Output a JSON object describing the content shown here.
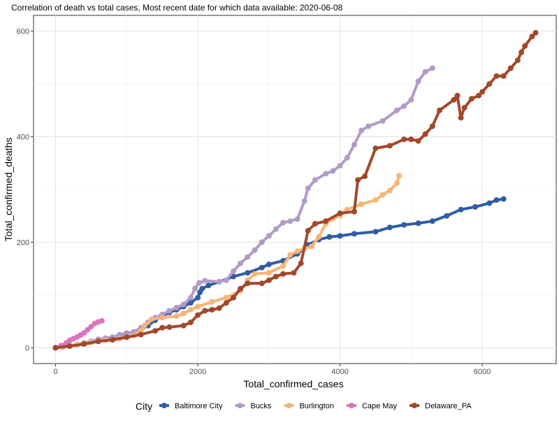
{
  "chart_data": {
    "type": "line",
    "title": "Correlation of death vs total cases, Most recent date for which data available: 2020-06-08",
    "xlabel": "Total_confirmed_cases",
    "ylabel": "Total_confirmed_deaths",
    "xlim": [
      -310,
      7040
    ],
    "ylim": [
      -30,
      630
    ],
    "xticks": [
      0,
      2000,
      4000,
      6000
    ],
    "yticks": [
      0,
      200,
      400,
      600
    ],
    "xtick_labels": [
      "0",
      "2000",
      "4000",
      "6000"
    ],
    "ytick_labels": [
      "0",
      "200",
      "400",
      "600"
    ],
    "grid": true,
    "legend": {
      "title": "City",
      "position": "bottom"
    },
    "series": [
      {
        "name": "Baltimore City",
        "color": "#2f5ca5",
        "points": [
          [
            0,
            0
          ],
          [
            100,
            2
          ],
          [
            200,
            4
          ],
          [
            300,
            6
          ],
          [
            400,
            9
          ],
          [
            500,
            12
          ],
          [
            600,
            15
          ],
          [
            700,
            18
          ],
          [
            800,
            20
          ],
          [
            900,
            24
          ],
          [
            1000,
            27
          ],
          [
            1100,
            30
          ],
          [
            1200,
            35
          ],
          [
            1300,
            42
          ],
          [
            1400,
            52
          ],
          [
            1500,
            60
          ],
          [
            1600,
            67
          ],
          [
            1700,
            72
          ],
          [
            1800,
            78
          ],
          [
            1900,
            85
          ],
          [
            2000,
            95
          ],
          [
            2030,
            105
          ],
          [
            2060,
            112
          ],
          [
            2150,
            118
          ],
          [
            2300,
            125
          ],
          [
            2500,
            135
          ],
          [
            2700,
            142
          ],
          [
            2900,
            152
          ],
          [
            3000,
            158
          ],
          [
            3200,
            165
          ],
          [
            3400,
            178
          ],
          [
            3550,
            195
          ],
          [
            3700,
            205
          ],
          [
            3850,
            210
          ],
          [
            4000,
            212
          ],
          [
            4200,
            216
          ],
          [
            4500,
            220
          ],
          [
            4700,
            228
          ],
          [
            4900,
            233
          ],
          [
            5100,
            236
          ],
          [
            5300,
            240
          ],
          [
            5500,
            250
          ],
          [
            5700,
            262
          ],
          [
            5900,
            267
          ],
          [
            6100,
            274
          ],
          [
            6200,
            280
          ],
          [
            6300,
            282
          ]
        ]
      },
      {
        "name": "Bucks",
        "color": "#b29bc8",
        "points": [
          [
            0,
            0
          ],
          [
            100,
            1
          ],
          [
            200,
            3
          ],
          [
            300,
            6
          ],
          [
            400,
            9
          ],
          [
            500,
            12
          ],
          [
            600,
            16
          ],
          [
            700,
            18
          ],
          [
            800,
            20
          ],
          [
            900,
            23
          ],
          [
            1000,
            26
          ],
          [
            1100,
            30
          ],
          [
            1200,
            38
          ],
          [
            1300,
            48
          ],
          [
            1400,
            57
          ],
          [
            1500,
            63
          ],
          [
            1600,
            70
          ],
          [
            1700,
            76
          ],
          [
            1800,
            82
          ],
          [
            1900,
            95
          ],
          [
            1960,
            112
          ],
          [
            2020,
            123
          ],
          [
            2100,
            127
          ],
          [
            2300,
            125
          ],
          [
            2400,
            128
          ],
          [
            2500,
            145
          ],
          [
            2600,
            160
          ],
          [
            2700,
            172
          ],
          [
            2800,
            185
          ],
          [
            2900,
            200
          ],
          [
            3000,
            212
          ],
          [
            3100,
            225
          ],
          [
            3200,
            237
          ],
          [
            3300,
            240
          ],
          [
            3400,
            244
          ],
          [
            3500,
            278
          ],
          [
            3550,
            302
          ],
          [
            3650,
            318
          ],
          [
            3800,
            330
          ],
          [
            3900,
            335
          ],
          [
            4000,
            345
          ],
          [
            4100,
            360
          ],
          [
            4200,
            385
          ],
          [
            4300,
            412
          ],
          [
            4400,
            420
          ],
          [
            4600,
            430
          ],
          [
            4800,
            450
          ],
          [
            4900,
            458
          ],
          [
            5000,
            470
          ],
          [
            5100,
            505
          ],
          [
            5200,
            523
          ],
          [
            5300,
            530
          ]
        ]
      },
      {
        "name": "Burlington",
        "color": "#f8b475",
        "points": [
          [
            0,
            0
          ],
          [
            100,
            2
          ],
          [
            200,
            4
          ],
          [
            300,
            6
          ],
          [
            400,
            8
          ],
          [
            500,
            10
          ],
          [
            600,
            12
          ],
          [
            700,
            14
          ],
          [
            800,
            15
          ],
          [
            900,
            17
          ],
          [
            1000,
            20
          ],
          [
            1100,
            23
          ],
          [
            1200,
            32
          ],
          [
            1250,
            42
          ],
          [
            1350,
            54
          ],
          [
            1500,
            57
          ],
          [
            1700,
            60
          ],
          [
            1800,
            65
          ],
          [
            1900,
            72
          ],
          [
            2000,
            78
          ],
          [
            2200,
            87
          ],
          [
            2400,
            95
          ],
          [
            2600,
            108
          ],
          [
            2700,
            128
          ],
          [
            2800,
            140
          ],
          [
            3000,
            142
          ],
          [
            3200,
            155
          ],
          [
            3300,
            176
          ],
          [
            3400,
            183
          ],
          [
            3500,
            188
          ],
          [
            3600,
            192
          ],
          [
            3700,
            210
          ],
          [
            3800,
            235
          ],
          [
            3900,
            245
          ],
          [
            4000,
            250
          ],
          [
            4100,
            262
          ],
          [
            4300,
            272
          ],
          [
            4500,
            280
          ],
          [
            4600,
            290
          ],
          [
            4700,
            298
          ],
          [
            4800,
            312
          ],
          [
            4830,
            326
          ]
        ]
      },
      {
        "name": "Cape May",
        "color": "#dc72c0",
        "points": [
          [
            0,
            0
          ],
          [
            80,
            4
          ],
          [
            150,
            9
          ],
          [
            200,
            14
          ],
          [
            250,
            17
          ],
          [
            300,
            20
          ],
          [
            350,
            24
          ],
          [
            400,
            28
          ],
          [
            450,
            34
          ],
          [
            500,
            40
          ],
          [
            550,
            46
          ],
          [
            600,
            49
          ],
          [
            650,
            51
          ]
        ]
      },
      {
        "name": "Delaware_PA",
        "color": "#a1482a",
        "points": [
          [
            0,
            0
          ],
          [
            200,
            3
          ],
          [
            400,
            7
          ],
          [
            600,
            12
          ],
          [
            800,
            15
          ],
          [
            1000,
            20
          ],
          [
            1200,
            25
          ],
          [
            1400,
            32
          ],
          [
            1500,
            38
          ],
          [
            1600,
            39
          ],
          [
            1800,
            42
          ],
          [
            1900,
            48
          ],
          [
            2000,
            62
          ],
          [
            2100,
            70
          ],
          [
            2200,
            72
          ],
          [
            2300,
            75
          ],
          [
            2400,
            85
          ],
          [
            2500,
            95
          ],
          [
            2600,
            112
          ],
          [
            2700,
            122
          ],
          [
            2900,
            122
          ],
          [
            3000,
            128
          ],
          [
            3100,
            135
          ],
          [
            3200,
            140
          ],
          [
            3350,
            142
          ],
          [
            3450,
            160
          ],
          [
            3550,
            222
          ],
          [
            3650,
            235
          ],
          [
            3800,
            240
          ],
          [
            4000,
            255
          ],
          [
            4200,
            258
          ],
          [
            4250,
            318
          ],
          [
            4350,
            325
          ],
          [
            4500,
            378
          ],
          [
            4700,
            383
          ],
          [
            4900,
            395
          ],
          [
            5000,
            395
          ],
          [
            5100,
            392
          ],
          [
            5200,
            405
          ],
          [
            5300,
            420
          ],
          [
            5400,
            450
          ],
          [
            5600,
            470
          ],
          [
            5650,
            478
          ],
          [
            5700,
            436
          ],
          [
            5750,
            455
          ],
          [
            5850,
            472
          ],
          [
            5950,
            478
          ],
          [
            6000,
            485
          ],
          [
            6100,
            500
          ],
          [
            6200,
            515
          ],
          [
            6300,
            515
          ],
          [
            6400,
            530
          ],
          [
            6500,
            545
          ],
          [
            6550,
            560
          ],
          [
            6600,
            572
          ],
          [
            6700,
            590
          ],
          [
            6750,
            597
          ]
        ]
      }
    ]
  }
}
